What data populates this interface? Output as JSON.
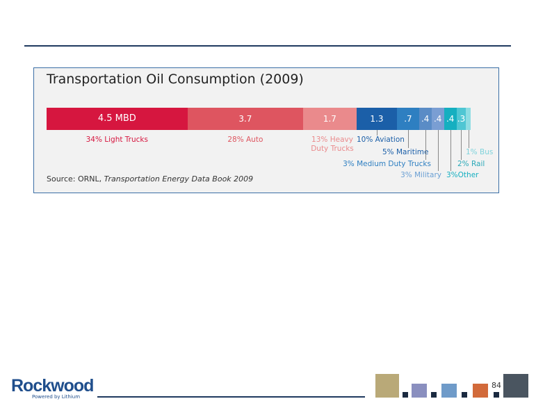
{
  "chart_data": {
    "type": "stacked-bar",
    "title": "Transportation Oil Consumption (2009)",
    "source": "Source: ORNL,",
    "source_title": "Transportation Energy Data Book 2009",
    "categories": [
      "34% Light Trucks",
      "28% Auto",
      "13% Heavy Duty Trucks",
      "10% Aviation",
      "5% Maritime",
      "3% Medium Duty Trucks",
      "3% Military",
      "3%Other",
      "2% Rail",
      "1% Bus"
    ],
    "values": [
      4.5,
      3.7,
      1.7,
      1.3,
      0.7,
      0.4,
      0.4,
      0.4,
      0.3,
      0.15
    ],
    "value_labels": [
      "4.5 MBD",
      "3.7",
      "1.7",
      "1.3",
      ".7",
      ".4",
      ".4",
      ".4",
      ".3",
      null
    ],
    "colors": [
      "#d6163f",
      "#de5560",
      "#ea8a8c",
      "#1b5fa8",
      "#2e7fc1",
      "#5a8cc6",
      "#7a9ed3",
      "#15afc0",
      "#4fc6d3",
      "#8edde3"
    ],
    "label_colors": [
      "#d6163f",
      "#de5560",
      "#ea8a8c",
      "#1b5fa8",
      "#1b5fa8",
      "#2e7fc1",
      "#6a9fd3",
      "#15afc0",
      "#2aa9b8",
      "#7fd3dc"
    ]
  },
  "footer": {
    "logo": "Rockwood",
    "tagline": "Powered by Lithium",
    "page": "84"
  }
}
